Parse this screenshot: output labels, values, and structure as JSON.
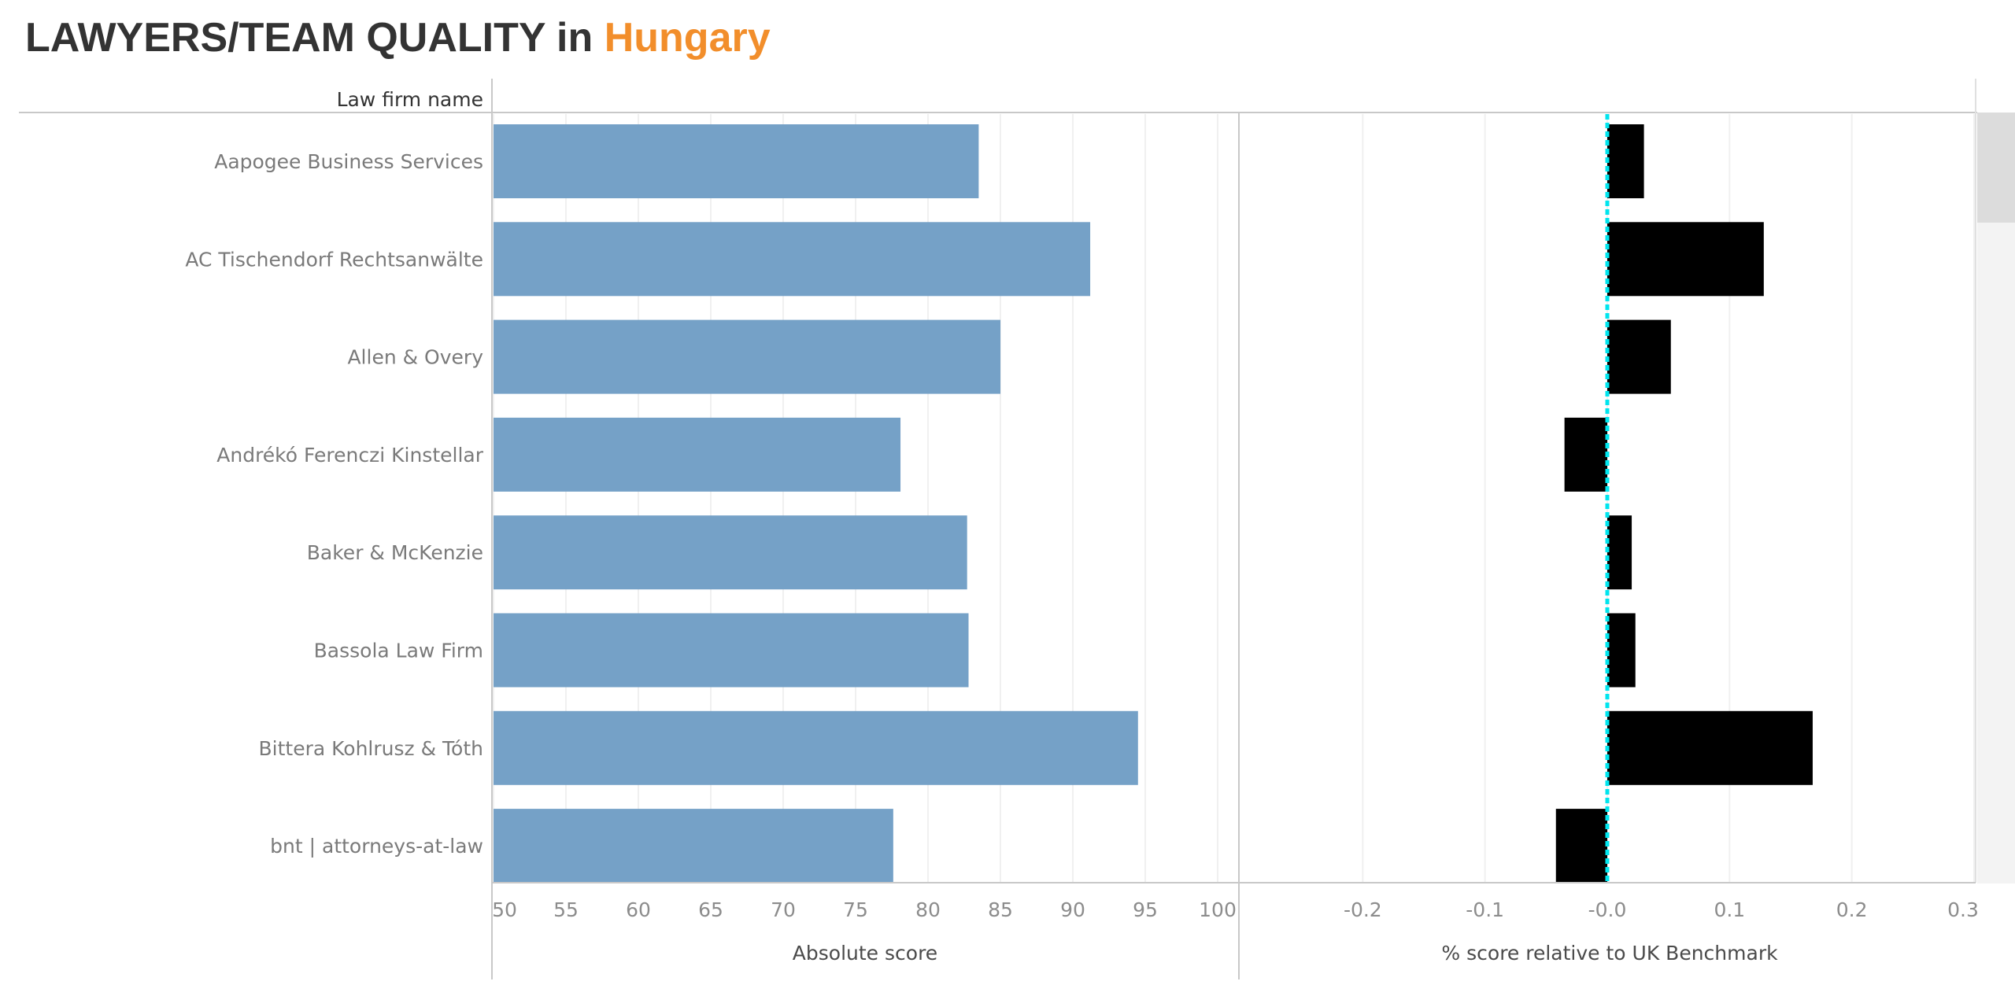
{
  "title": {
    "main": "LAWYERS/TEAM QUALITY in ",
    "highlight": "Hungary"
  },
  "colors": {
    "absolute_bar": "#75a1c7",
    "relative_bar": "#000000",
    "benchmark_line": "#00e5ee",
    "highlight": "#f28e2b"
  },
  "chart_data": {
    "type": "bar",
    "orientation": "horizontal",
    "row_header": "Law firm name",
    "categories": [
      "Aapogee Business Services",
      "AC Tischendorf Rechtsanwälte",
      "Allen & Overy",
      "Andrékó Ferenczi Kinstellar",
      "Baker & McKenzie",
      "Bassola Law Firm",
      "Bittera Kohlrusz & Tóth",
      "bnt | attorneys-at-law"
    ],
    "panels": [
      {
        "xlabel": "Absolute score",
        "xlim": [
          50,
          100
        ],
        "ticks": [
          "50",
          "55",
          "60",
          "65",
          "70",
          "75",
          "80",
          "85",
          "90",
          "95",
          "100"
        ],
        "values": [
          83.5,
          91.2,
          85.0,
          78.1,
          82.7,
          82.8,
          94.5,
          77.6
        ]
      },
      {
        "xlabel": "% score relative to UK Benchmark",
        "xlim": [
          -0.3,
          0.3
        ],
        "ticks": [
          "-0.2",
          "-0.1",
          "-0.0",
          "0.1",
          "0.2",
          "0.3"
        ],
        "tick_values": [
          -0.2,
          -0.1,
          0.0,
          0.1,
          0.2,
          0.3
        ],
        "values": [
          0.03,
          0.128,
          0.052,
          -0.035,
          0.02,
          0.023,
          0.168,
          -0.042
        ],
        "reference_line": 0
      }
    ]
  }
}
